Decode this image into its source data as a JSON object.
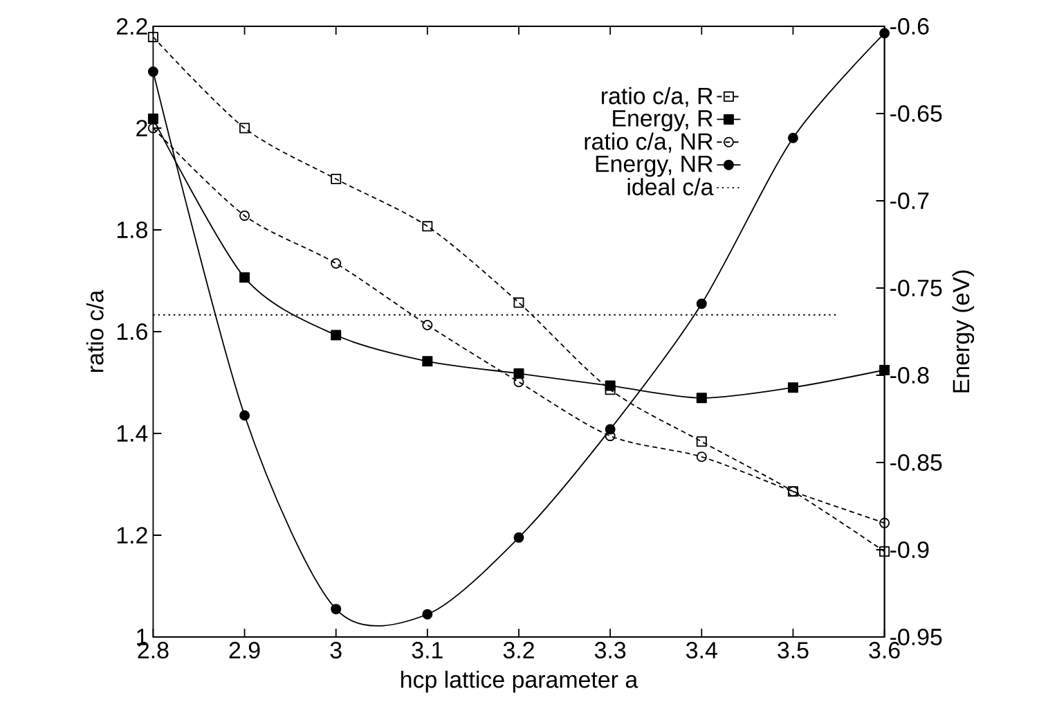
{
  "chart_data": {
    "type": "line",
    "xlabel": "hcp lattice parameter a",
    "ylabel": "ratio c/a",
    "y2label": "Energy (eV)",
    "x": [
      2.8,
      2.9,
      3.0,
      3.1,
      3.2,
      3.3,
      3.4,
      3.5,
      3.6
    ],
    "series": [
      {
        "name": "ratio c/a, R",
        "color": "#000000",
        "marker": "square",
        "line_style": "dashed",
        "values": [
          2.179,
          2.0,
          1.9,
          1.807,
          1.657,
          1.486,
          1.384,
          1.286,
          1.168
        ]
      },
      {
        "name": "Energy, R",
        "color": "#000000",
        "marker": "square",
        "line_style": "solid",
        "axis": "y2",
        "values": [
          -0.653,
          -0.744,
          -0.777,
          -0.792,
          -0.799,
          -0.806,
          -0.813,
          -0.807,
          -0.797
        ]
      },
      {
        "name": "ratio c/a, NR",
        "color": "#000000",
        "marker": "circle",
        "line_style": "dashed",
        "values": [
          2.0,
          1.828,
          1.734,
          1.613,
          1.501,
          1.395,
          1.354,
          1.286,
          1.224
        ]
      },
      {
        "name": "Energy, NR",
        "color": "#000000",
        "marker": "circle",
        "line_style": "solid",
        "axis": "y2",
        "values": [
          -0.626,
          -0.823,
          -0.934,
          -0.937,
          -0.893,
          -0.831,
          -0.759,
          -0.664,
          -0.604
        ]
      },
      {
        "name": "ideal c/a",
        "color": "#000000",
        "marker": "none",
        "line_style": "dotted",
        "x": [
          2.8,
          3.55
        ],
        "values": [
          1.633,
          1.633
        ]
      }
    ],
    "xlim": [
      2.8,
      3.6
    ],
    "xticks": [
      2.8,
      2.9,
      3,
      3.1,
      3.2,
      3.3,
      3.4,
      3.5,
      3.6
    ],
    "ylim": [
      1,
      2.2
    ],
    "yticks": [
      1,
      1.2,
      1.4,
      1.6,
      1.8,
      2,
      2.2
    ],
    "y2lim": [
      -0.95,
      -0.6
    ],
    "y2ticks": [
      -0.95,
      -0.9,
      -0.85,
      -0.8,
      -0.75,
      -0.7,
      -0.65,
      -0.6
    ],
    "legend": "top right"
  }
}
